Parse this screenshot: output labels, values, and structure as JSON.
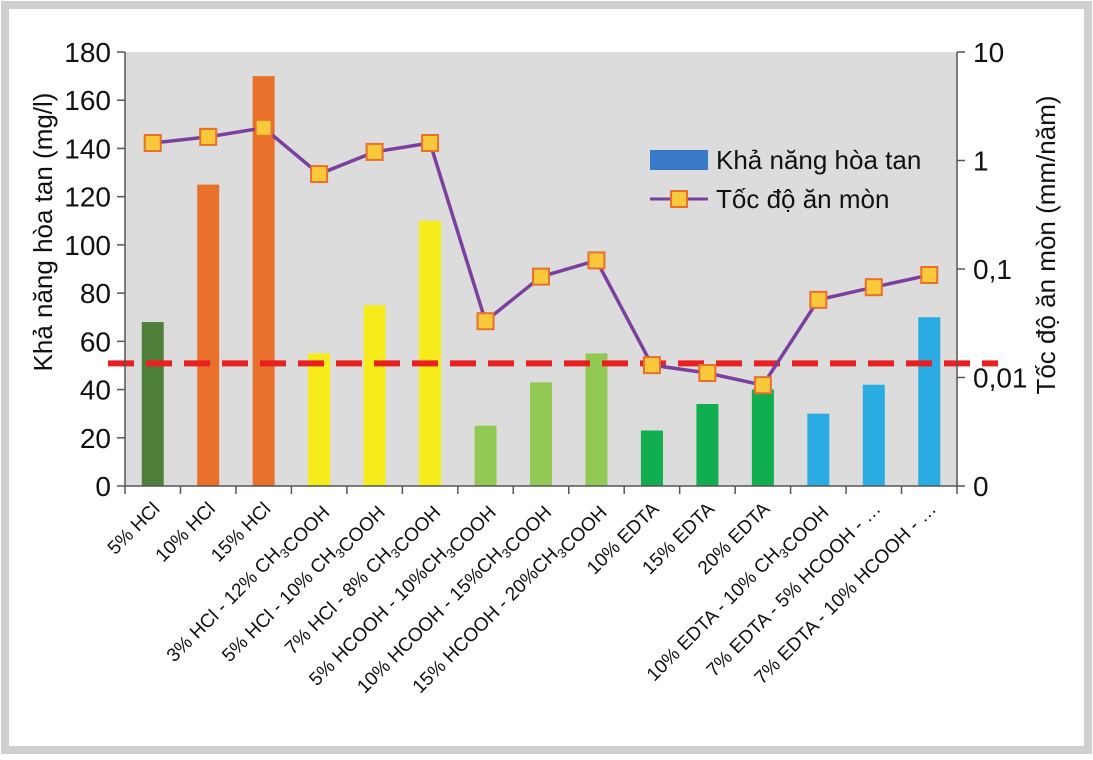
{
  "chart_data": {
    "type": "bar",
    "categories": [
      "5% HCl",
      "10% HCl",
      "15% HCl",
      "3% HCl - 12% CH3COOH",
      "5% HCl - 10% CH3COOH",
      "7% HCl - 8% CH3COOH",
      "5% HCOOH - 10%CH3COOH",
      "10% HCOOH - 15%CH3COOH",
      "15% HCOOH - 20%CH3COOH",
      "10% EDTA",
      "15% EDTA",
      "20% EDTA",
      "10% EDTA - 10% CH3COOH",
      "7% EDTA - 5% HCOOH - …",
      "7% EDTA - 10% HCOOH - …"
    ],
    "series": [
      {
        "name": "Khả năng hòa tan",
        "type": "bar",
        "axis": "left",
        "values": [
          68,
          125,
          170,
          55,
          75,
          110,
          25,
          43,
          55,
          23,
          34,
          40,
          30,
          42,
          70
        ],
        "colors": [
          "#4E7F3A",
          "#E8702A",
          "#E8702A",
          "#F7EC1B",
          "#F7EC1B",
          "#F7EC1B",
          "#92C954",
          "#92C954",
          "#92C954",
          "#10AE4E",
          "#10AE4E",
          "#10AE4E",
          "#2AACE2",
          "#2AACE2",
          "#2AACE2"
        ]
      },
      {
        "name": "Tốc độ ăn mòn",
        "type": "line",
        "axis": "right",
        "values": [
          1.45,
          1.65,
          2.0,
          0.75,
          1.2,
          1.45,
          0.033,
          0.085,
          0.12,
          0.013,
          0.011,
          0.0085,
          0.052,
          0.068,
          0.088
        ],
        "color": "#7B3F9E",
        "marker_color": "#F9C93B"
      }
    ],
    "reference_line": {
      "axis": "right",
      "value": 0.0135,
      "color": "#E8201F",
      "style": "dashed"
    },
    "ylabel": "Khả năng hòa tan (mg/l)",
    "y2label": "Tốc độ ăn mòn (mm/năm)",
    "ylim": [
      0,
      180
    ],
    "yticks": [
      "0",
      "20",
      "40",
      "60",
      "80",
      "100",
      "120",
      "140",
      "160",
      "180"
    ],
    "y2scale": "log",
    "y2lim": [
      0.001,
      10
    ],
    "y2ticks": [
      {
        "label": "0",
        "value": 0.001
      },
      {
        "label": "0,01",
        "value": 0.01
      },
      {
        "label": "0,1",
        "value": 0.1
      },
      {
        "label": "1",
        "value": 1
      },
      {
        "label": "10",
        "value": 10
      }
    ],
    "grid": false,
    "legend_position": "top-right",
    "plot_background": "#DCDCDC"
  }
}
